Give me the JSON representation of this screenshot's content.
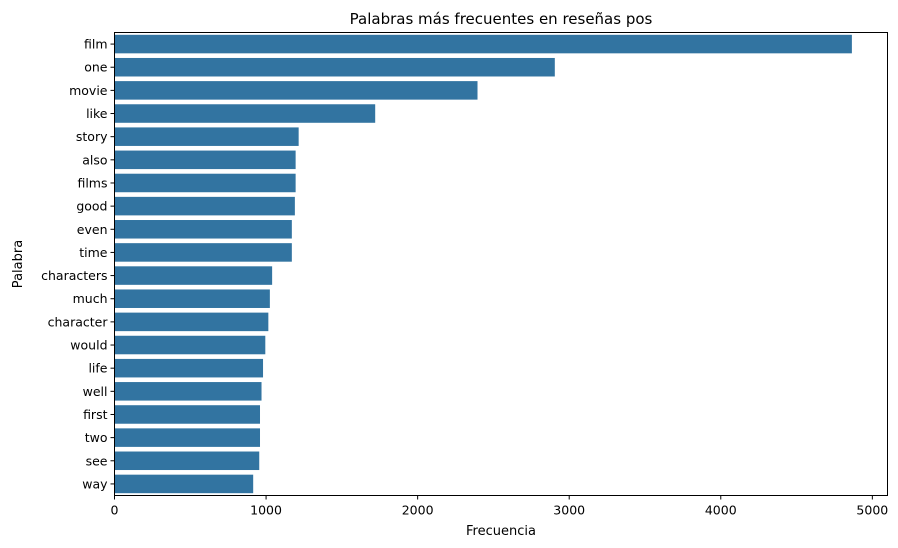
{
  "chart_data": {
    "type": "bar",
    "orientation": "horizontal",
    "title": "Palabras más frecuentes en reseñas pos",
    "xlabel": "Frecuencia",
    "ylabel": "Palabra",
    "xlim": [
      0,
      5100
    ],
    "x_ticks": [
      0,
      1000,
      2000,
      3000,
      4000,
      5000
    ],
    "x_tick_labels": [
      "0",
      "1000",
      "2000",
      "3000",
      "4000",
      "5000"
    ],
    "grid": false,
    "bar_color": "#3274a1",
    "categories": [
      "film",
      "one",
      "movie",
      "like",
      "story",
      "also",
      "films",
      "good",
      "even",
      "time",
      "characters",
      "much",
      "character",
      "would",
      "life",
      "well",
      "first",
      "two",
      "see",
      "way"
    ],
    "values": [
      4865,
      2905,
      2395,
      1720,
      1215,
      1195,
      1195,
      1190,
      1170,
      1170,
      1040,
      1025,
      1015,
      995,
      980,
      970,
      960,
      960,
      955,
      915
    ]
  }
}
